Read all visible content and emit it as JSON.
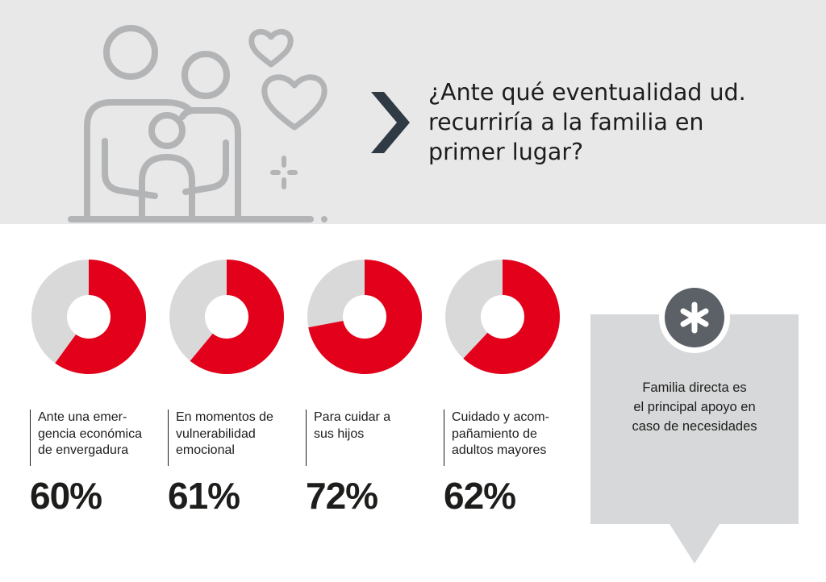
{
  "header": {
    "question_lines": [
      "¿Ante qué eventualidad ud.",
      "recurriría a la familia en",
      "primer lugar?"
    ]
  },
  "colors": {
    "accent_red": "#e2001a",
    "remainder_gray": "#d9d9d9",
    "header_bg": "#e8e8e9",
    "icon_gray": "#b3b4b6",
    "chevron": "#2f3a45",
    "callout_bg": "#d7d8da",
    "callout_circle": "#5b6167"
  },
  "icons": {
    "family": "family-outline-icon",
    "hearts": "heart-icon",
    "sparkle": "sparkle-icon",
    "chevron": "chevron-right-icon",
    "asterisk": "asterisk-icon"
  },
  "chart_data": {
    "type": "pie",
    "variant": "donut",
    "items": [
      {
        "label_lines": [
          "Ante una emer-",
          "gencia económica",
          "de envergadura"
        ],
        "value": 60,
        "value_label": "60%"
      },
      {
        "label_lines": [
          "En momentos de",
          "vulnerabilidad",
          "emocional"
        ],
        "value": 61,
        "value_label": "61%"
      },
      {
        "label_lines": [
          "Para cuidar a",
          "sus hijos"
        ],
        "value": 72,
        "value_label": "72%"
      },
      {
        "label_lines": [
          "Cuidado y acom-",
          "pañamiento de",
          "adultos mayores"
        ],
        "value": 62,
        "value_label": "62%"
      }
    ]
  },
  "callout": {
    "lines": [
      "Familia directa es",
      "el principal apoyo en",
      "caso de necesidades"
    ]
  }
}
